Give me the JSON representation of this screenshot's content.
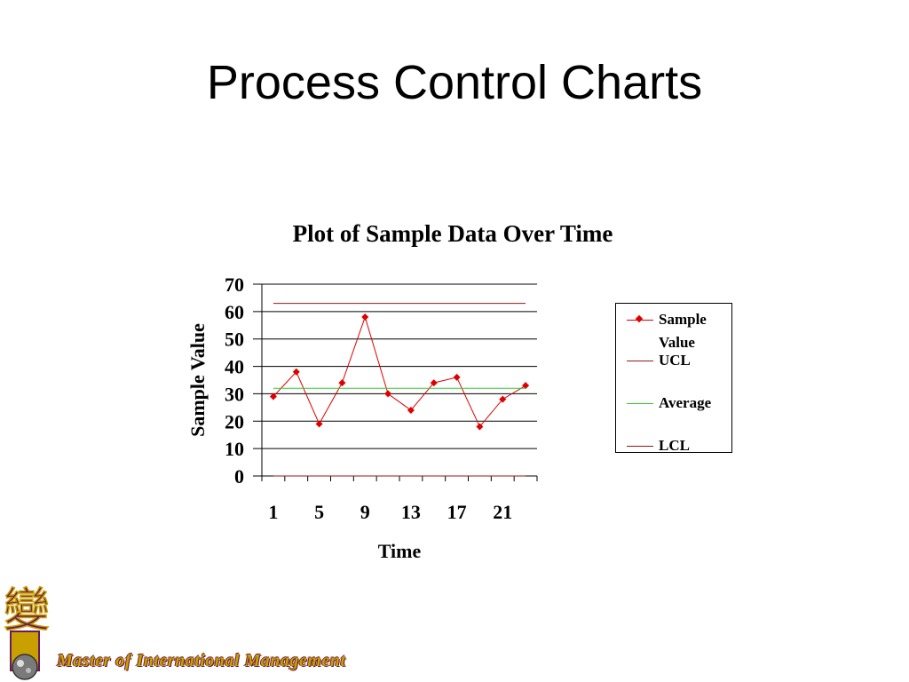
{
  "slide": {
    "title": "Process Control Charts",
    "footer": "Master of International Management",
    "logo_glyph": "變"
  },
  "colors": {
    "sample": "#e00000",
    "ucl": "#8b1a1a",
    "average": "#33cc33",
    "lcl": "#8b1a1a",
    "logo_purple": "#6b1a5a",
    "logo_gold": "#c8a000"
  },
  "chart_data": {
    "type": "line",
    "title": "Plot of Sample Data Over Time",
    "xlabel": "Time",
    "ylabel": "Sample Value",
    "ylim": [
      0,
      70
    ],
    "yticks": [
      0,
      10,
      20,
      30,
      40,
      50,
      60,
      70
    ],
    "xtick_labels": [
      "1",
      "5",
      "9",
      "13",
      "17",
      "21"
    ],
    "x": [
      1,
      3,
      5,
      7,
      9,
      11,
      13,
      15,
      17,
      19,
      21,
      23
    ],
    "grid": true,
    "legend_position": "right",
    "series": [
      {
        "name": "Sample Value",
        "values": [
          29,
          38,
          19,
          34,
          58,
          30,
          24,
          34,
          36,
          18,
          28,
          33
        ]
      },
      {
        "name": "UCL",
        "values": [
          63,
          63,
          63,
          63,
          63,
          63,
          63,
          63,
          63,
          63,
          63,
          63
        ]
      },
      {
        "name": "Average",
        "values": [
          32,
          32,
          32,
          32,
          32,
          32,
          32,
          32,
          32,
          32,
          32,
          32
        ]
      },
      {
        "name": "LCL",
        "values": [
          0,
          0,
          0,
          0,
          0,
          0,
          0,
          0,
          0,
          0,
          0,
          0
        ]
      }
    ]
  }
}
